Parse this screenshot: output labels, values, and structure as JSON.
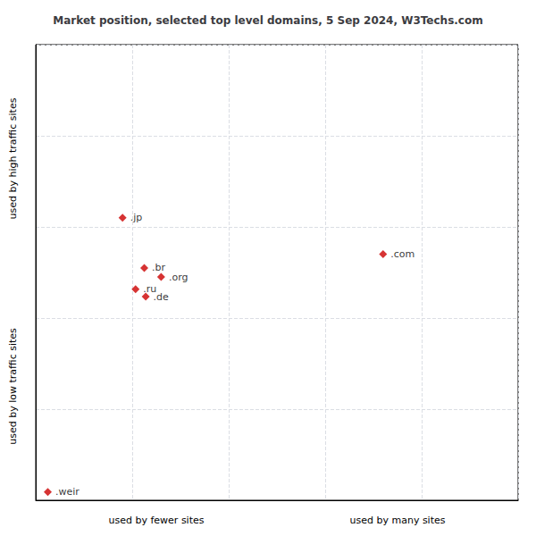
{
  "chart_data": {
    "type": "scatter",
    "title": "Market position, selected top level domains, 5 Sep 2024, W3Techs.com",
    "xlabel_left": "used by fewer sites",
    "xlabel_right": "used by many sites",
    "ylabel_top": "used by high traffic sites",
    "ylabel_bottom": "used by low traffic sites",
    "labels": [
      ".jp",
      ".com",
      ".br",
      ".org",
      ".ru",
      ".de",
      ".weir"
    ],
    "x": [
      0.18,
      0.72,
      0.225,
      0.26,
      0.207,
      0.228,
      0.025
    ],
    "values": [
      0.62,
      0.54,
      0.51,
      0.49,
      0.463,
      0.447,
      0.018
    ],
    "xlim": [
      0,
      1
    ],
    "ylim": [
      0,
      1
    ],
    "xticks": [
      0,
      0.2,
      0.4,
      0.6,
      0.8,
      1
    ],
    "yticks": [
      0,
      0.2,
      0.4,
      0.6,
      0.8,
      1
    ],
    "grid": true,
    "tick_labels": false,
    "color": "#cc0000",
    "marker": "diamond"
  }
}
